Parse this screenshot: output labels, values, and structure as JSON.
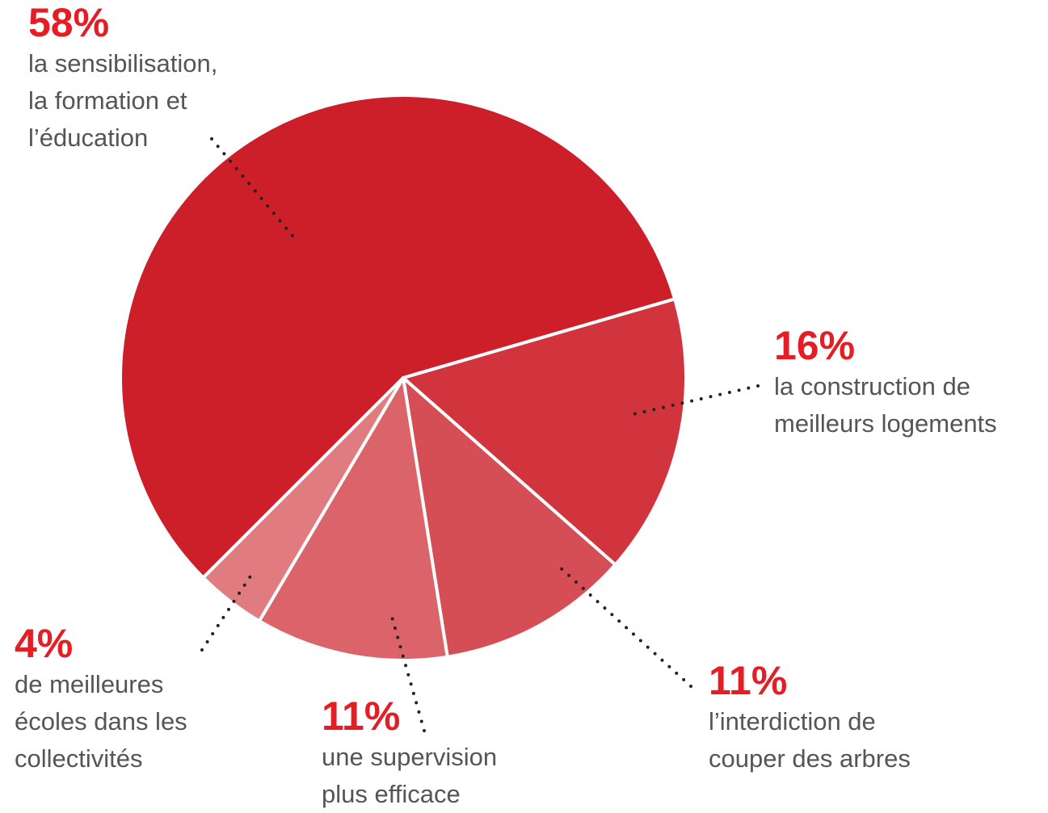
{
  "chart_data": {
    "type": "pie",
    "categories": [
      "la sensibilisation,\nla formation et\nl’éducation",
      "la construction de\nmeilleurs logements",
      "l’interdiction de\ncouper des arbres",
      "une supervision\nplus efficace",
      "de meilleures\nécoles dans les\ncollectivités"
    ],
    "values": [
      58,
      16,
      11,
      11,
      4
    ],
    "value_labels": [
      "58%",
      "16%",
      "11%",
      "11%",
      "4%"
    ],
    "colors": [
      "#cc1f2a",
      "#d1343c",
      "#d64e55",
      "#da646a",
      "#e07b80"
    ]
  }
}
